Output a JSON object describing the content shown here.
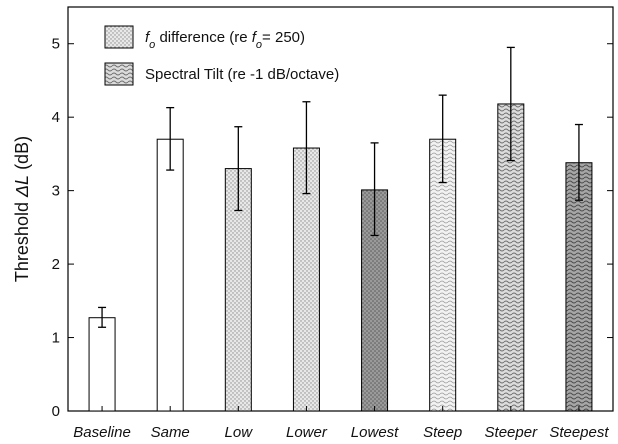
{
  "chart_data": {
    "type": "bar",
    "categories": [
      "Baseline",
      "Same",
      "Low",
      "Lower",
      "Lowest",
      "Steep",
      "Steeper",
      "Steepest"
    ],
    "values": [
      1.27,
      3.7,
      3.3,
      3.58,
      3.01,
      3.7,
      4.18,
      3.38
    ],
    "error_low": [
      1.14,
      3.28,
      2.73,
      2.96,
      2.39,
      3.11,
      3.41,
      2.87
    ],
    "error_high": [
      1.41,
      4.13,
      3.87,
      4.21,
      3.65,
      4.3,
      4.95,
      3.9
    ],
    "fills": [
      "white",
      "white",
      "dots-light",
      "dots-light",
      "dots-dark",
      "waves-light",
      "waves-mid",
      "waves-dark"
    ],
    "ylabel_prefix": "Threshold ",
    "ylabel_var": "ΔL",
    "ylabel_suffix": " (dB)",
    "ylim": [
      0,
      5.5
    ],
    "yticks": [
      "0",
      "1",
      "2",
      "3",
      "4",
      "5"
    ],
    "grid": false,
    "legend_position": "top-left",
    "legend": [
      {
        "pattern": "dots-light",
        "parts": [
          {
            "text": "f",
            "italic": true
          },
          {
            "text": "o",
            "italic": true,
            "sub": true
          },
          {
            "text": " difference (re "
          },
          {
            "text": "f",
            "italic": true
          },
          {
            "text": "o",
            "italic": true,
            "sub": true
          },
          {
            "text": "= 250)"
          }
        ]
      },
      {
        "pattern": "waves-mid",
        "parts": [
          {
            "text": "Spectral Tilt (re -1 dB/octave)"
          }
        ]
      }
    ]
  }
}
